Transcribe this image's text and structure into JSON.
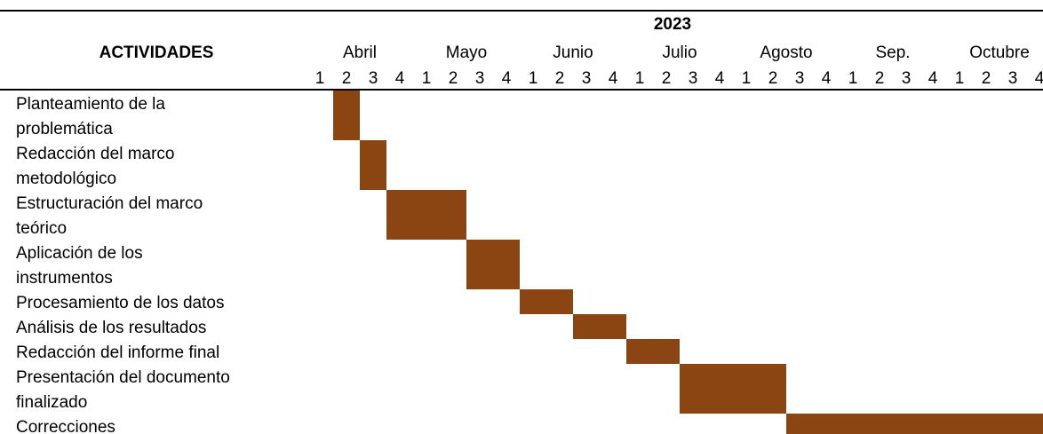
{
  "header": {
    "activities_label": "ACTIVIDADES",
    "year": "2023",
    "months": [
      "Abril",
      "Mayo",
      "Junio",
      "Julio",
      "Agosto",
      "Sep.",
      "Octubre"
    ],
    "weeks": [
      "1",
      "2",
      "3",
      "4"
    ]
  },
  "colors": {
    "bar": "#8B4513",
    "rule": "#000000"
  },
  "chart_data": {
    "type": "gantt",
    "title": "",
    "time_axis": {
      "year": "2023",
      "months": [
        "Abril",
        "Mayo",
        "Junio",
        "Julio",
        "Agosto",
        "Sep.",
        "Octubre"
      ],
      "weeks_per_month": [
        "1",
        "2",
        "3",
        "4"
      ]
    },
    "tasks": [
      {
        "label": [
          "Planteamiento de la",
          "problemática"
        ],
        "start": {
          "month": "Abril",
          "week": 2
        },
        "end": {
          "month": "Abril",
          "week": 2
        }
      },
      {
        "label": [
          "Redacción del marco",
          "metodológico"
        ],
        "start": {
          "month": "Abril",
          "week": 3
        },
        "end": {
          "month": "Abril",
          "week": 3
        }
      },
      {
        "label": [
          "Estructuración del marco",
          "teórico"
        ],
        "start": {
          "month": "Abril",
          "week": 4
        },
        "end": {
          "month": "Mayo",
          "week": 2
        }
      },
      {
        "label": [
          "Aplicación de los",
          "instrumentos"
        ],
        "start": {
          "month": "Mayo",
          "week": 3
        },
        "end": {
          "month": "Mayo",
          "week": 4
        }
      },
      {
        "label": [
          "Procesamiento de los datos"
        ],
        "start": {
          "month": "Junio",
          "week": 1
        },
        "end": {
          "month": "Junio",
          "week": 2
        }
      },
      {
        "label": [
          "Análisis de los resultados"
        ],
        "start": {
          "month": "Junio",
          "week": 3
        },
        "end": {
          "month": "Junio",
          "week": 4
        }
      },
      {
        "label": [
          "Redacción del informe final"
        ],
        "start": {
          "month": "Julio",
          "week": 1
        },
        "end": {
          "month": "Julio",
          "week": 2
        }
      },
      {
        "label": [
          "Presentación del documento",
          "finalizado"
        ],
        "start": {
          "month": "Julio",
          "week": 3
        },
        "end": {
          "month": "Agosto",
          "week": 2
        }
      },
      {
        "label": [
          "Correcciones"
        ],
        "start": {
          "month": "Agosto",
          "week": 3
        },
        "end": {
          "month": "Octubre",
          "week": 4
        }
      }
    ]
  }
}
